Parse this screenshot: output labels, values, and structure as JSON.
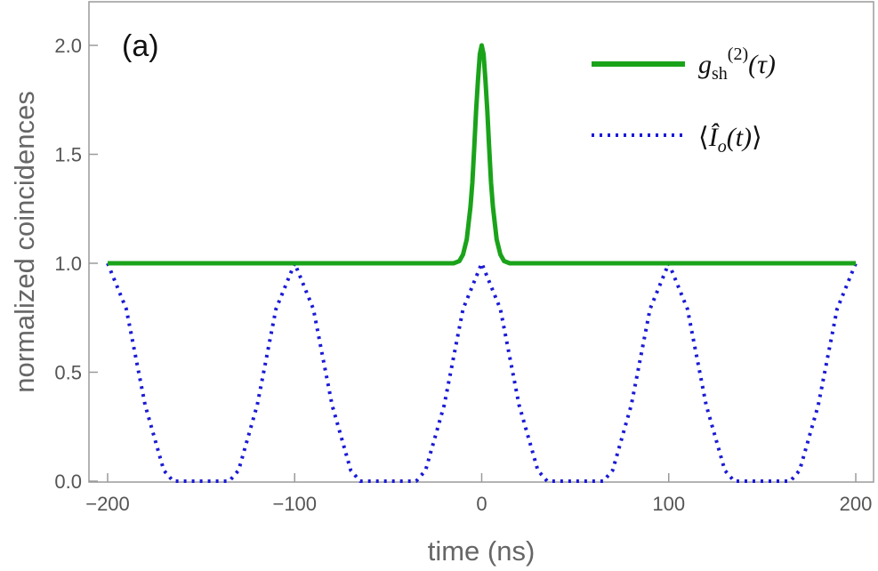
{
  "chart_data": {
    "type": "line",
    "panel_label": "(a)",
    "xlabel": "time (ns)",
    "ylabel": "normalized coincidences",
    "xlim": [
      -200,
      200
    ],
    "ylim": [
      0,
      2.2
    ],
    "x_ticks": [
      -200,
      -100,
      0,
      100,
      200
    ],
    "x_tick_labels": [
      "−200",
      "−100",
      "0",
      "100",
      "200"
    ],
    "y_ticks": [
      0.0,
      0.5,
      1.0,
      1.5,
      2.0
    ],
    "y_tick_labels": [
      "0.0",
      "0.5",
      "1.0",
      "1.5",
      "2.0"
    ],
    "grid": false,
    "legend_position": "top-right",
    "series": [
      {
        "name_parts": {
          "base": "g",
          "sub": "sh",
          "sup": "(2)",
          "arg": "(τ)"
        },
        "style": "solid",
        "color": "#1aa31a",
        "x": [
          -200,
          -50,
          -15,
          -12,
          -10,
          -8,
          -6,
          -5,
          -4,
          -3,
          -2,
          -1,
          0,
          1,
          2,
          3,
          4,
          5,
          6,
          8,
          10,
          12,
          15,
          50,
          200
        ],
        "y": [
          1.0,
          1.0,
          1.0,
          1.01,
          1.04,
          1.11,
          1.26,
          1.37,
          1.53,
          1.7,
          1.84,
          1.96,
          2.0,
          1.96,
          1.84,
          1.7,
          1.53,
          1.37,
          1.26,
          1.11,
          1.04,
          1.01,
          1.0,
          1.0,
          1.0
        ]
      },
      {
        "name_parts": {
          "open": "⟨",
          "base": "Î",
          "sub": "o",
          "arg": "(t)",
          "close": "⟩"
        },
        "style": "dotted",
        "color": "#1a1ad6",
        "x": [
          -200,
          -190,
          -180,
          -170,
          -165,
          -160,
          -150,
          -140,
          -135,
          -130,
          -120,
          -110,
          -100,
          -90,
          -80,
          -70,
          -65,
          -60,
          -50,
          -40,
          -35,
          -30,
          -20,
          -10,
          0,
          10,
          20,
          30,
          35,
          40,
          50,
          60,
          65,
          70,
          80,
          90,
          100,
          110,
          120,
          130,
          135,
          140,
          150,
          160,
          165,
          170,
          180,
          190,
          200
        ],
        "y": [
          1.0,
          0.79,
          0.35,
          0.05,
          0.0,
          0.0,
          0.0,
          0.0,
          0.0,
          0.05,
          0.35,
          0.79,
          1.0,
          0.79,
          0.35,
          0.05,
          0.0,
          0.0,
          0.0,
          0.0,
          0.0,
          0.05,
          0.35,
          0.79,
          1.0,
          0.79,
          0.35,
          0.05,
          0.0,
          0.0,
          0.0,
          0.0,
          0.0,
          0.05,
          0.35,
          0.79,
          1.0,
          0.79,
          0.35,
          0.05,
          0.0,
          0.0,
          0.0,
          0.0,
          0.0,
          0.05,
          0.35,
          0.79,
          1.0
        ]
      }
    ]
  }
}
